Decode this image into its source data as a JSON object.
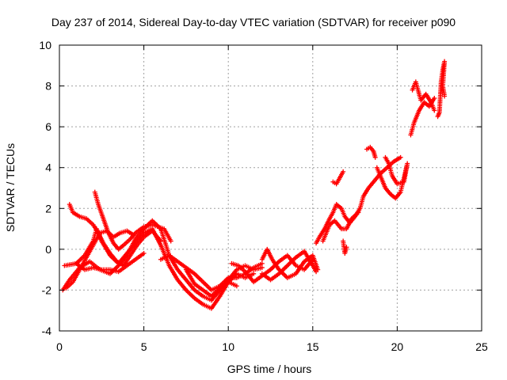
{
  "chart_data": {
    "type": "scatter",
    "title": "Day 237 of 2014, Sidereal Day-to-day VTEC variation (SDTVAR) for receiver p090",
    "xlabel": "GPS time / hours",
    "ylabel": "SDTVAR / TECUs",
    "xlim": [
      0,
      25
    ],
    "ylim": [
      -4,
      10
    ],
    "xticks": [
      "0",
      "5",
      "10",
      "15",
      "20",
      "25"
    ],
    "yticks": [
      "-4",
      "-2",
      "0",
      "2",
      "4",
      "6",
      "8",
      "10"
    ],
    "grid": true,
    "marker": "plus",
    "color": "#ff0000",
    "tracks": [
      [
        [
          0.2,
          -2.0
        ],
        [
          0.6,
          -1.5
        ],
        [
          1.2,
          -0.9
        ],
        [
          1.8,
          -0.6
        ],
        [
          2.4,
          -1.0
        ],
        [
          3.0,
          -1.2
        ],
        [
          3.5,
          -0.8
        ],
        [
          4.0,
          -0.3
        ],
        [
          4.5,
          0.5
        ],
        [
          5.0,
          1.0
        ],
        [
          5.5,
          1.4
        ],
        [
          6.0,
          1.0
        ],
        [
          6.5,
          -0.3
        ],
        [
          7.0,
          -1.0
        ],
        [
          7.5,
          -1.5
        ],
        [
          8.0,
          -2.0
        ],
        [
          8.5,
          -2.3
        ],
        [
          9.0,
          -2.5
        ],
        [
          9.5,
          -2.0
        ],
        [
          10.0,
          -1.5
        ],
        [
          10.5,
          -1.0
        ],
        [
          11.0,
          -0.8
        ],
        [
          11.5,
          -1.0
        ],
        [
          12.0,
          -0.9
        ]
      ],
      [
        [
          0.3,
          -0.8
        ],
        [
          1.0,
          -0.7
        ],
        [
          1.5,
          -0.3
        ],
        [
          2.0,
          0.4
        ],
        [
          2.2,
          1.0
        ],
        [
          2.5,
          0.4
        ],
        [
          3.0,
          -0.3
        ],
        [
          3.5,
          -0.7
        ],
        [
          4.0,
          -0.2
        ],
        [
          4.5,
          0.3
        ],
        [
          5.0,
          0.8
        ],
        [
          5.5,
          1.0
        ],
        [
          6.0,
          0.2
        ],
        [
          6.5,
          -0.8
        ],
        [
          7.0,
          -1.5
        ],
        [
          7.5,
          -2.0
        ],
        [
          8.0,
          -2.4
        ],
        [
          8.5,
          -2.7
        ],
        [
          9.0,
          -2.9
        ],
        [
          9.5,
          -2.3
        ],
        [
          10.0,
          -1.6
        ],
        [
          10.5,
          -1.2
        ],
        [
          11.0,
          -1.4
        ],
        [
          11.5,
          -1.2
        ]
      ],
      [
        [
          0.6,
          2.2
        ],
        [
          0.8,
          1.8
        ],
        [
          1.2,
          1.6
        ],
        [
          1.6,
          1.5
        ],
        [
          2.0,
          1.2
        ],
        [
          2.3,
          0.8
        ],
        [
          2.6,
          0.3
        ],
        [
          3.0,
          -0.2
        ],
        [
          3.4,
          -0.6
        ],
        [
          3.8,
          -0.8
        ],
        [
          4.2,
          -0.3
        ],
        [
          4.6,
          0.2
        ],
        [
          5.0,
          0.6
        ],
        [
          5.5,
          0.9
        ],
        [
          6.0,
          0.4
        ]
      ],
      [
        [
          2.1,
          2.8
        ],
        [
          2.3,
          2.2
        ],
        [
          2.6,
          1.5
        ],
        [
          2.9,
          0.8
        ],
        [
          3.2,
          0.3
        ],
        [
          3.5,
          0.0
        ],
        [
          3.8,
          0.2
        ],
        [
          4.2,
          0.5
        ],
        [
          4.5,
          0.8
        ],
        [
          5.0,
          1.1
        ],
        [
          5.5,
          1.2
        ],
        [
          6.2,
          1.0
        ],
        [
          6.6,
          0.4
        ]
      ],
      [
        [
          0.4,
          -1.9
        ],
        [
          0.8,
          -1.6
        ],
        [
          1.2,
          -1.0
        ],
        [
          1.6,
          -0.4
        ],
        [
          2.0,
          0.2
        ],
        [
          2.4,
          0.8
        ],
        [
          2.8,
          0.9
        ],
        [
          3.2,
          0.6
        ],
        [
          3.6,
          0.8
        ],
        [
          4.0,
          0.9
        ],
        [
          4.4,
          0.7
        ]
      ],
      [
        [
          1.0,
          -0.7
        ],
        [
          1.5,
          -1.0
        ],
        [
          2.0,
          -0.9
        ],
        [
          2.5,
          -1.0
        ],
        [
          3.0,
          -1.0
        ],
        [
          3.5,
          -1.1
        ],
        [
          4.0,
          -0.8
        ],
        [
          4.5,
          -0.5
        ],
        [
          5.0,
          -0.2
        ]
      ],
      [
        [
          6.0,
          -0.5
        ],
        [
          6.5,
          -0.3
        ],
        [
          7.0,
          -0.6
        ],
        [
          7.5,
          -0.9
        ],
        [
          8.0,
          -1.2
        ],
        [
          8.5,
          -1.6
        ],
        [
          9.0,
          -2.0
        ],
        [
          9.5,
          -1.8
        ],
        [
          10.0,
          -1.4
        ],
        [
          10.5,
          -1.4
        ],
        [
          11.0,
          -1.2
        ],
        [
          11.5,
          -0.9
        ],
        [
          12.0,
          -0.7
        ]
      ],
      [
        [
          7.5,
          -1.0
        ],
        [
          8.0,
          -1.7
        ],
        [
          8.5,
          -2.0
        ],
        [
          9.0,
          -2.3
        ],
        [
          9.5,
          -1.9
        ],
        [
          10.0,
          -1.6
        ],
        [
          10.5,
          -1.8
        ]
      ],
      [
        [
          10.2,
          -0.7
        ],
        [
          10.6,
          -0.8
        ],
        [
          11.0,
          -1.1
        ],
        [
          11.5,
          -1.6
        ],
        [
          12.0,
          -1.3
        ],
        [
          12.5,
          -1.0
        ],
        [
          13.0,
          -0.6
        ],
        [
          13.5,
          -0.3
        ],
        [
          14.0,
          -0.8
        ],
        [
          14.5,
          -1.0
        ],
        [
          15.0,
          -0.5
        ]
      ],
      [
        [
          12.0,
          -0.5
        ],
        [
          12.3,
          0.0
        ],
        [
          12.6,
          -0.5
        ],
        [
          13.0,
          -1.0
        ],
        [
          13.5,
          -1.4
        ],
        [
          14.0,
          -1.2
        ],
        [
          14.5,
          -0.6
        ],
        [
          15.0,
          -0.3
        ],
        [
          15.3,
          -1.0
        ]
      ],
      [
        [
          12.0,
          -1.2
        ],
        [
          12.5,
          -1.5
        ],
        [
          13.0,
          -1.2
        ],
        [
          13.5,
          -0.8
        ],
        [
          14.0,
          -0.4
        ],
        [
          14.5,
          -0.1
        ],
        [
          15.0,
          -0.8
        ],
        [
          15.2,
          -1.1
        ]
      ],
      [
        [
          15.2,
          0.3
        ],
        [
          15.4,
          0.6
        ],
        [
          15.7,
          1.0
        ],
        [
          16.0,
          1.5
        ],
        [
          16.2,
          1.8
        ],
        [
          16.4,
          2.2
        ],
        [
          16.7,
          2.0
        ],
        [
          16.9,
          1.6
        ],
        [
          17.2,
          1.3
        ],
        [
          17.5,
          1.6
        ],
        [
          17.8,
          2.0
        ],
        [
          18.0,
          2.6
        ],
        [
          18.3,
          3.0
        ],
        [
          18.6,
          3.3
        ],
        [
          19.0,
          3.7
        ],
        [
          19.4,
          4.0
        ],
        [
          19.8,
          4.3
        ],
        [
          20.2,
          4.5
        ]
      ],
      [
        [
          15.6,
          0.4
        ],
        [
          16.0,
          1.2
        ],
        [
          16.3,
          1.4
        ],
        [
          16.7,
          1.0
        ],
        [
          17.0,
          1.0
        ],
        [
          17.3,
          1.5
        ],
        [
          17.7,
          1.8
        ]
      ],
      [
        [
          16.2,
          3.3
        ],
        [
          16.4,
          3.2
        ],
        [
          16.6,
          3.5
        ],
        [
          16.8,
          3.8
        ]
      ],
      [
        [
          16.8,
          0.4
        ],
        [
          16.9,
          -0.2
        ],
        [
          17.0,
          0.1
        ]
      ],
      [
        [
          18.2,
          4.9
        ],
        [
          18.4,
          5.0
        ],
        [
          18.6,
          4.8
        ],
        [
          18.7,
          4.5
        ]
      ],
      [
        [
          18.8,
          4.0
        ],
        [
          19.0,
          3.6
        ],
        [
          19.3,
          3.0
        ],
        [
          19.6,
          2.7
        ],
        [
          19.9,
          2.5
        ],
        [
          20.2,
          2.8
        ],
        [
          20.4,
          3.5
        ],
        [
          20.6,
          4.2
        ],
        [
          20.4,
          3.3
        ],
        [
          20.0,
          3.2
        ],
        [
          19.7,
          3.6
        ],
        [
          19.5,
          4.2
        ],
        [
          19.3,
          4.5
        ]
      ],
      [
        [
          20.8,
          5.6
        ],
        [
          21.0,
          6.2
        ],
        [
          21.3,
          6.8
        ],
        [
          21.6,
          7.2
        ],
        [
          21.9,
          7.0
        ],
        [
          22.2,
          7.4
        ]
      ],
      [
        [
          20.9,
          7.8
        ],
        [
          21.1,
          8.2
        ],
        [
          21.4,
          7.3
        ],
        [
          21.7,
          7.6
        ],
        [
          22.0,
          7.2
        ],
        [
          22.2,
          6.8
        ]
      ],
      [
        [
          22.4,
          6.5
        ],
        [
          22.5,
          6.7
        ],
        [
          22.6,
          8.2
        ],
        [
          22.7,
          8.8
        ],
        [
          22.8,
          9.2
        ],
        [
          22.7,
          8.0
        ],
        [
          22.8,
          7.5
        ]
      ]
    ]
  }
}
